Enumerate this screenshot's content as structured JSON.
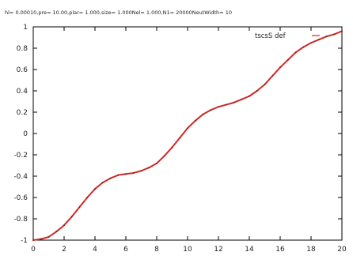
{
  "chart_data": {
    "type": "line",
    "title": "hl= 0.00010,pre= 10.00,plar= 1.000,size= 1.000Nel= 1.000,N1=  20000NeutWidth=  10",
    "xlabel": "",
    "ylabel": "",
    "xlim": [
      0,
      20
    ],
    "ylim": [
      -1,
      1
    ],
    "x_ticks": [
      "0",
      "2",
      "4",
      "6",
      "8",
      "10",
      "12",
      "14",
      "16",
      "18",
      "20"
    ],
    "y_ticks": [
      "1",
      "0.8",
      "0.6",
      "0.4",
      "0.2",
      "0",
      "-0.2",
      "-0.4",
      "-0.6",
      "-0.8",
      "-1"
    ],
    "grid": false,
    "legend_position": "top-right",
    "series": [
      {
        "name": "tscsS def",
        "color": "#d62728",
        "marker_color": "#5a2d0c",
        "x": [
          0,
          0.5,
          1,
          1.5,
          2,
          2.5,
          3,
          3.5,
          4,
          4.5,
          5,
          5.5,
          6,
          6.5,
          7,
          7.5,
          8,
          8.5,
          9,
          9.5,
          10,
          10.5,
          11,
          11.5,
          12,
          12.5,
          13,
          13.5,
          14,
          14.5,
          15,
          15.5,
          16,
          16.5,
          17,
          17.5,
          18,
          18.5,
          19,
          19.5,
          20
        ],
        "y": [
          -1.0,
          -0.99,
          -0.97,
          -0.92,
          -0.86,
          -0.78,
          -0.69,
          -0.6,
          -0.52,
          -0.46,
          -0.42,
          -0.39,
          -0.38,
          -0.37,
          -0.35,
          -0.32,
          -0.28,
          -0.21,
          -0.13,
          -0.04,
          0.05,
          0.12,
          0.18,
          0.22,
          0.25,
          0.27,
          0.29,
          0.32,
          0.35,
          0.4,
          0.46,
          0.54,
          0.62,
          0.69,
          0.76,
          0.81,
          0.85,
          0.88,
          0.91,
          0.93,
          0.96
        ]
      }
    ]
  }
}
